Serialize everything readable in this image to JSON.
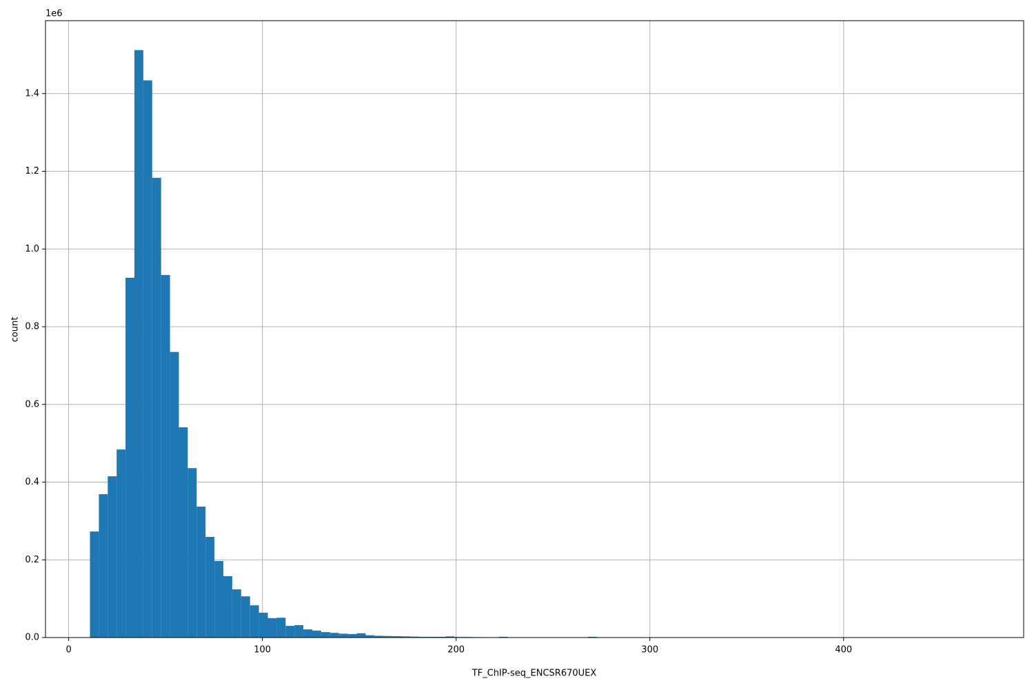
{
  "chart_data": {
    "type": "histogram",
    "xlabel": "TF_ChIP-seq_ENCSR670UEX",
    "ylabel": "count",
    "y_offset_label": "1e6",
    "color": "#1f77b4",
    "grid": true,
    "bins": [
      11,
      15.59,
      20.18,
      24.77,
      29.36,
      33.95,
      38.54,
      43.13,
      47.72,
      52.31,
      56.9,
      61.49,
      66.08,
      70.67,
      75.26,
      79.85,
      84.44,
      89.03,
      93.62,
      98.21,
      102.8,
      107.39,
      111.98,
      116.57,
      121.16,
      125.75,
      130.34,
      134.93,
      139.52,
      144.11,
      148.7,
      153.29,
      157.88,
      162.47,
      167.06,
      171.65,
      176.24,
      180.83,
      185.42,
      190.01,
      194.6,
      199.19,
      203.78,
      208.37,
      212.96,
      217.55,
      222.14,
      226.73,
      231.32,
      235.91,
      240.5,
      245.09,
      249.68,
      254.27,
      258.86,
      263.45,
      268.04,
      272.63,
      277.22,
      281.81,
      286.4,
      290.99,
      295.58,
      300.17,
      304.76,
      309.35,
      313.94,
      318.53,
      323.12,
      327.71,
      332.3,
      336.89,
      341.48,
      346.07,
      350.66,
      355.25,
      359.84,
      364.43,
      369.02,
      373.61,
      378.2,
      382.79,
      387.38,
      391.97,
      396.56,
      401.15,
      405.74,
      410.33,
      414.92,
      419.51,
      424.1,
      428.69,
      433.28,
      437.87,
      442.46,
      447.05,
      451.64,
      456.23,
      460.82,
      465.41,
      470
    ],
    "values": [
      273000,
      369000,
      415000,
      484000,
      926000,
      1512000,
      1434000,
      1183000,
      933000,
      735000,
      541000,
      436000,
      337000,
      259000,
      197000,
      158000,
      124000,
      106000,
      83000,
      64000,
      50000,
      51000,
      30000,
      32000,
      21000,
      18000,
      14000,
      12000,
      10000,
      9000,
      11000,
      6000,
      4500,
      4000,
      3500,
      3000,
      2500,
      2000,
      2000,
      1800,
      3000,
      1500,
      1500,
      1200,
      1000,
      800,
      2000,
      700,
      600,
      500,
      400,
      400,
      300,
      300,
      300,
      300,
      2000,
      200,
      100,
      100,
      100,
      100,
      100,
      100,
      100,
      100,
      100,
      100,
      100,
      100,
      0,
      0,
      0,
      0,
      0,
      0,
      0,
      0,
      0,
      0,
      0,
      0,
      0,
      0,
      0,
      0,
      0,
      0,
      0,
      0,
      0,
      0,
      0,
      0,
      0,
      0,
      0,
      0,
      0,
      50
    ],
    "xlim": [
      -11.95,
      492.95
    ],
    "ylim": [
      0,
      1587600
    ],
    "xticks": [
      0,
      100,
      200,
      300,
      400
    ],
    "yticks": [
      {
        "value": 0,
        "label": "0.0"
      },
      {
        "value": 200000,
        "label": "0.2"
      },
      {
        "value": 400000,
        "label": "0.4"
      },
      {
        "value": 600000,
        "label": "0.6"
      },
      {
        "value": 800000,
        "label": "0.8"
      },
      {
        "value": 1000000,
        "label": "1.0"
      },
      {
        "value": 1200000,
        "label": "1.2"
      },
      {
        "value": 1400000,
        "label": "1.4"
      }
    ]
  }
}
